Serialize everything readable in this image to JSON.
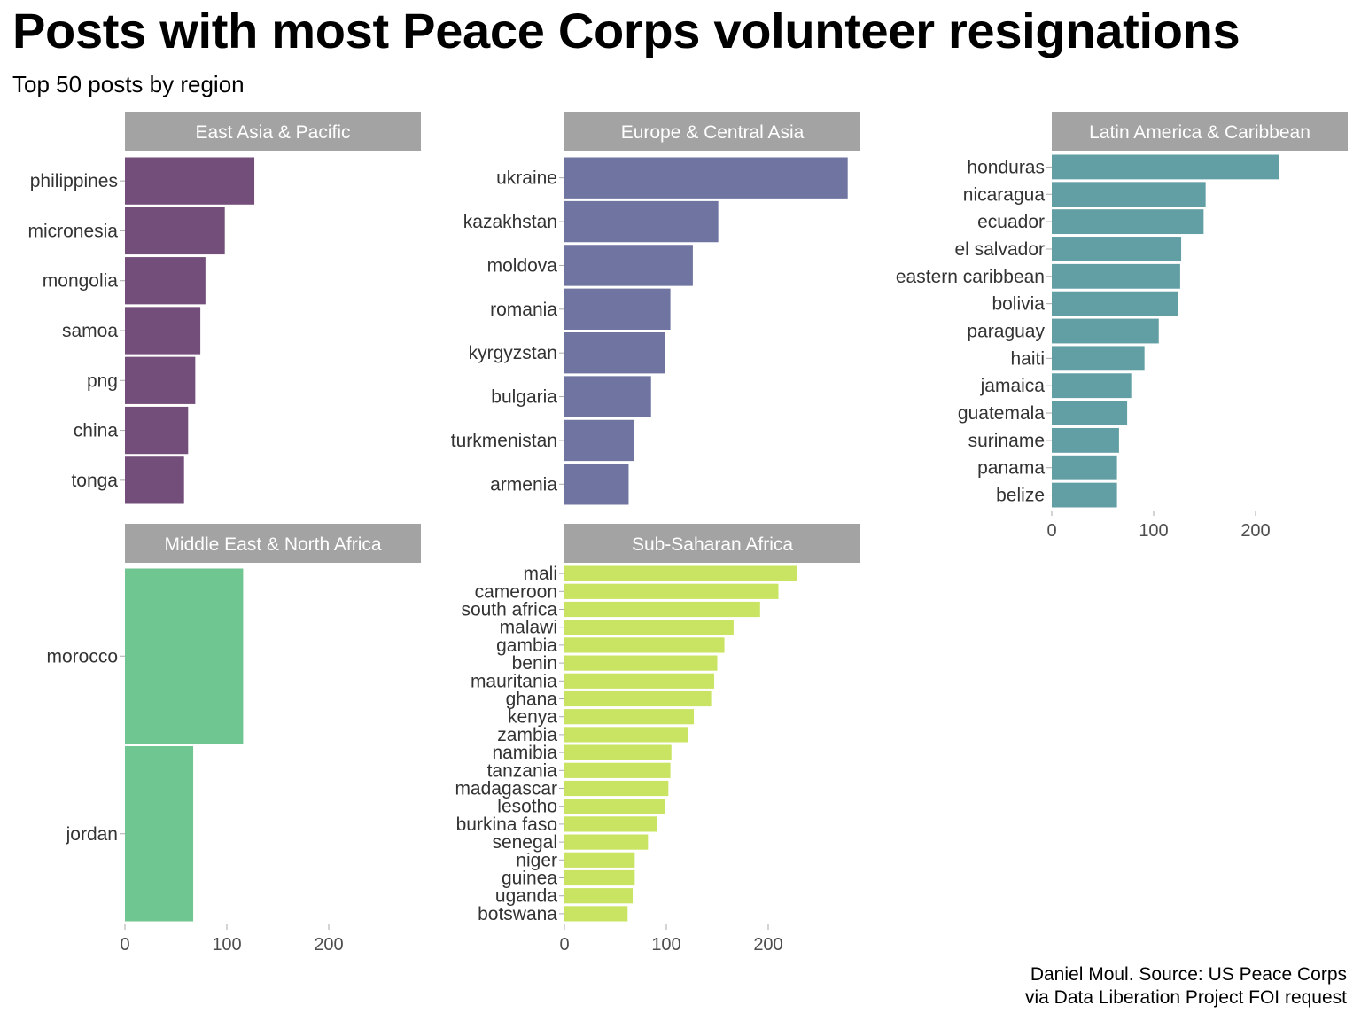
{
  "title": "Posts with most Peace Corps volunteer resignations",
  "subtitle": "Top 50 posts by region",
  "caption_line1": "Daniel Moul. Source: US Peace Corps",
  "caption_line2": "via Data Liberation Project FOI request",
  "chart_data": {
    "type": "bar",
    "orientation": "horizontal",
    "facet": "region",
    "x_ticks": [
      0,
      100,
      200
    ],
    "xlim": [
      0,
      290
    ],
    "grid": false,
    "panels": [
      {
        "name": "East Asia & Pacific",
        "color": "#744e7a",
        "categories": [
          "philippines",
          "micronesia",
          "mongolia",
          "samoa",
          "png",
          "china",
          "tonga"
        ],
        "values": [
          127,
          98,
          79,
          74,
          69,
          62,
          58
        ]
      },
      {
        "name": "Europe & Central Asia",
        "color": "#6f74a0",
        "categories": [
          "ukraine",
          "kazakhstan",
          "moldova",
          "romania",
          "kyrgyzstan",
          "bulgaria",
          "turkmenistan",
          "armenia"
        ],
        "values": [
          278,
          151,
          126,
          104,
          99,
          85,
          68,
          63
        ]
      },
      {
        "name": "Latin America & Caribbean",
        "color": "#629fa5",
        "categories": [
          "honduras",
          "nicaragua",
          "ecuador",
          "el salvador",
          "eastern caribbean",
          "bolivia",
          "paraguay",
          "haiti",
          "jamaica",
          "guatemala",
          "suriname",
          "panama",
          "belize"
        ],
        "values": [
          223,
          151,
          149,
          127,
          126,
          124,
          105,
          91,
          78,
          74,
          66,
          64,
          64
        ]
      },
      {
        "name": "Middle East & North Africa",
        "color": "#6fc690",
        "categories": [
          "morocco",
          "jordan"
        ],
        "values": [
          116,
          67
        ]
      },
      {
        "name": "Sub-Saharan Africa",
        "color": "#c9e462",
        "categories": [
          "mali",
          "cameroon",
          "south africa",
          "malawi",
          "gambia",
          "benin",
          "mauritania",
          "ghana",
          "kenya",
          "zambia",
          "namibia",
          "tanzania",
          "madagascar",
          "lesotho",
          "burkina faso",
          "senegal",
          "niger",
          "guinea",
          "uganda",
          "botswana"
        ],
        "values": [
          228,
          210,
          192,
          166,
          157,
          150,
          147,
          144,
          127,
          121,
          105,
          104,
          102,
          99,
          91,
          82,
          69,
          69,
          67,
          62
        ]
      }
    ]
  }
}
